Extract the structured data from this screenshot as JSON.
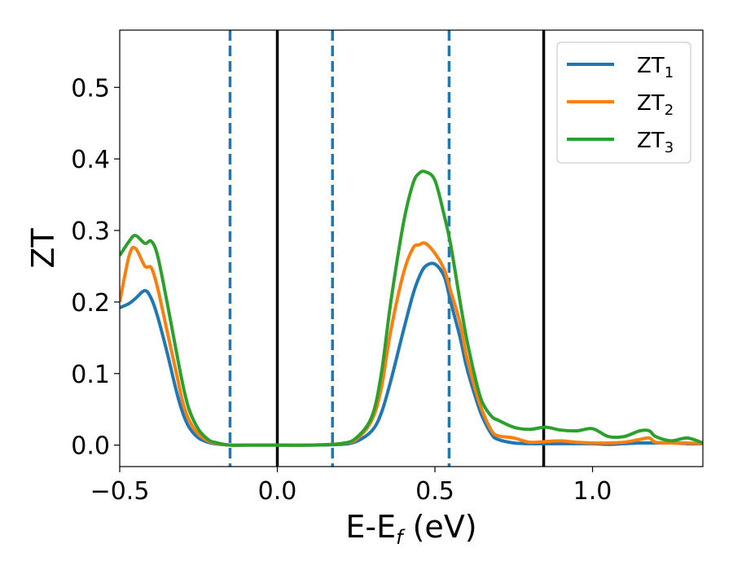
{
  "chart_data": {
    "type": "line",
    "xlabel": "E-E",
    "xlabel_sub": "f",
    "xlabel_unit": " (eV)",
    "ylabel": "ZT",
    "xlim": [
      -0.5,
      1.35
    ],
    "ylim": [
      -0.03,
      0.58
    ],
    "xticks": [
      -0.5,
      0.0,
      0.5,
      1.0
    ],
    "xtick_labels": [
      "−0.5",
      "0.0",
      "0.5",
      "1.0"
    ],
    "yticks": [
      0.0,
      0.1,
      0.2,
      0.3,
      0.4,
      0.5
    ],
    "ytick_labels": [
      "0.0",
      "0.1",
      "0.2",
      "0.3",
      "0.4",
      "0.5"
    ],
    "grid": false,
    "legend_position": "top-right",
    "vlines": [
      {
        "x": -0.15,
        "style": "dashed",
        "color": "#1f77b4"
      },
      {
        "x": 0.0,
        "style": "solid",
        "color": "#000000"
      },
      {
        "x": 0.175,
        "style": "dashed",
        "color": "#1f77b4"
      },
      {
        "x": 0.545,
        "style": "dashed",
        "color": "#1f77b4"
      },
      {
        "x": 0.845,
        "style": "solid",
        "color": "#000000"
      }
    ],
    "x": [
      -0.5,
      -0.47,
      -0.45,
      -0.42,
      -0.4,
      -0.38,
      -0.35,
      -0.32,
      -0.3,
      -0.28,
      -0.25,
      -0.22,
      -0.2,
      -0.15,
      -0.1,
      0.0,
      0.1,
      0.2,
      0.25,
      0.3,
      0.33,
      0.36,
      0.4,
      0.43,
      0.45,
      0.47,
      0.5,
      0.53,
      0.55,
      0.58,
      0.6,
      0.63,
      0.65,
      0.68,
      0.7,
      0.75,
      0.8,
      0.85,
      0.9,
      0.95,
      1.0,
      1.05,
      1.1,
      1.15,
      1.18,
      1.2,
      1.25,
      1.3,
      1.35
    ],
    "series": [
      {
        "name": "ZT",
        "name_sub": "1",
        "color": "#1f77b4",
        "values": [
          0.192,
          0.198,
          0.205,
          0.216,
          0.205,
          0.18,
          0.13,
          0.075,
          0.045,
          0.025,
          0.01,
          0.004,
          0.002,
          0.0,
          0.0,
          0.0,
          0.0,
          0.001,
          0.005,
          0.02,
          0.045,
          0.09,
          0.16,
          0.21,
          0.235,
          0.25,
          0.253,
          0.235,
          0.2,
          0.15,
          0.11,
          0.065,
          0.04,
          0.015,
          0.008,
          0.003,
          0.002,
          0.002,
          0.002,
          0.002,
          0.002,
          0.001,
          0.002,
          0.003,
          0.003,
          0.003,
          0.003,
          0.002,
          0.002
        ]
      },
      {
        "name": "ZT",
        "name_sub": "2",
        "color": "#ff7f0e",
        "values": [
          0.2,
          0.265,
          0.275,
          0.25,
          0.248,
          0.22,
          0.16,
          0.1,
          0.06,
          0.035,
          0.015,
          0.006,
          0.003,
          0.0,
          0.0,
          0.0,
          0.0,
          0.002,
          0.008,
          0.035,
          0.08,
          0.16,
          0.24,
          0.275,
          0.28,
          0.282,
          0.268,
          0.245,
          0.215,
          0.17,
          0.125,
          0.075,
          0.048,
          0.02,
          0.013,
          0.01,
          0.004,
          0.005,
          0.006,
          0.004,
          0.003,
          0.003,
          0.004,
          0.008,
          0.01,
          0.004,
          0.003,
          0.003,
          0.002
        ]
      },
      {
        "name": "ZT",
        "name_sub": "3",
        "color": "#2ca02c",
        "values": [
          0.265,
          0.285,
          0.293,
          0.282,
          0.285,
          0.265,
          0.2,
          0.13,
          0.085,
          0.05,
          0.022,
          0.008,
          0.004,
          0.0,
          0.0,
          0.0,
          0.0,
          0.002,
          0.01,
          0.04,
          0.1,
          0.2,
          0.31,
          0.365,
          0.38,
          0.382,
          0.37,
          0.32,
          0.28,
          0.2,
          0.15,
          0.09,
          0.06,
          0.04,
          0.035,
          0.025,
          0.022,
          0.025,
          0.021,
          0.02,
          0.023,
          0.012,
          0.012,
          0.02,
          0.02,
          0.012,
          0.006,
          0.01,
          0.003
        ]
      }
    ]
  }
}
